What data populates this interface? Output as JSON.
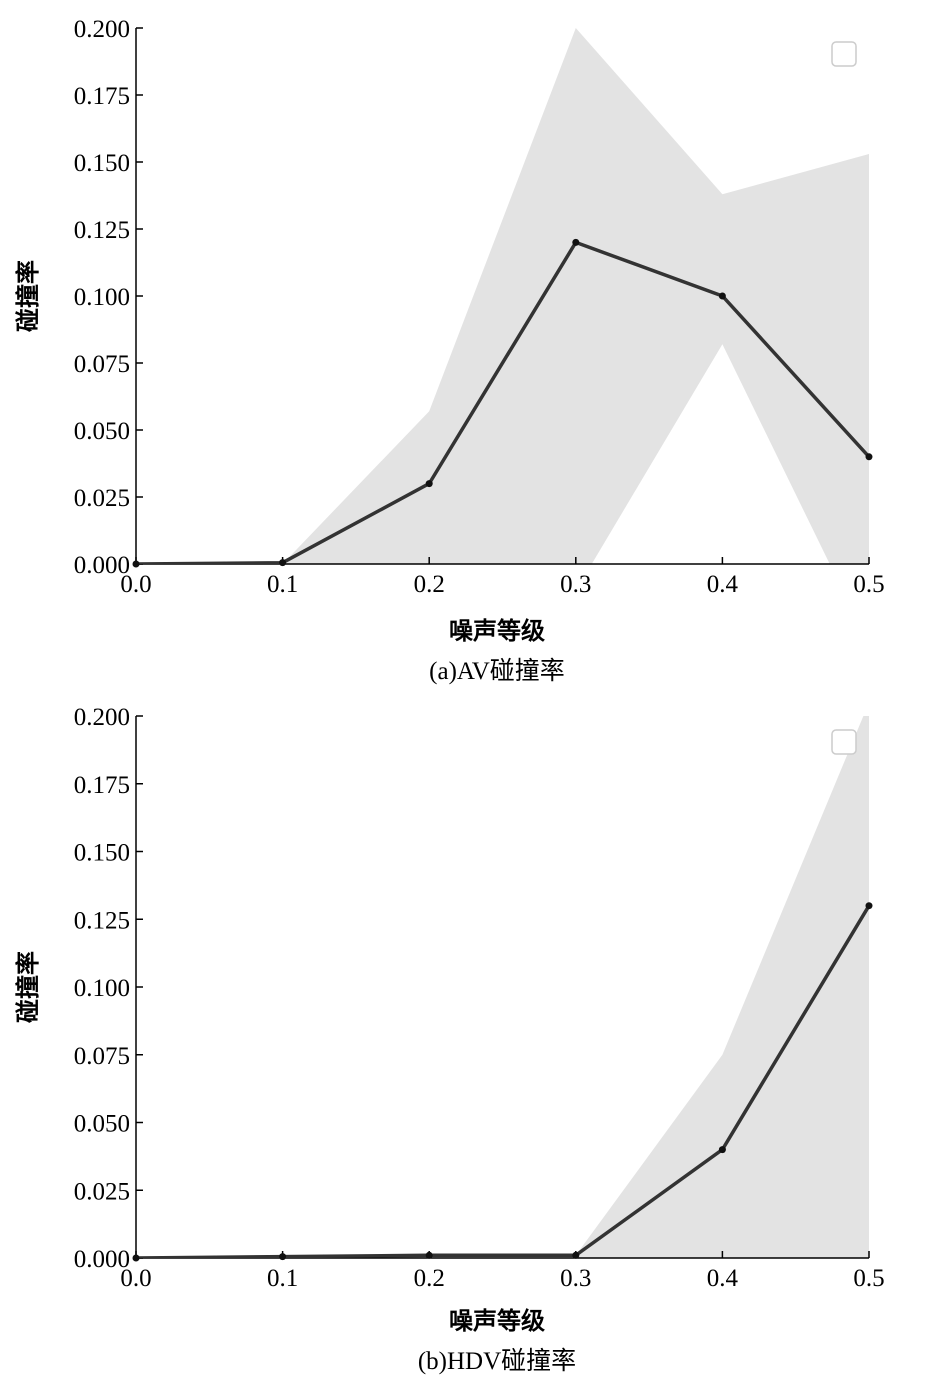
{
  "chart_data": [
    {
      "type": "line",
      "caption": "(a)AV碰撞率",
      "xlabel": "噪声等级",
      "ylabel": "碰撞率",
      "x": [
        0.0,
        0.1,
        0.2,
        0.3,
        0.4,
        0.5
      ],
      "xlim": [
        0.0,
        0.5
      ],
      "ylim": [
        0.0,
        0.2
      ],
      "xticks": [
        "0.0",
        "0.1",
        "0.2",
        "0.3",
        "0.4",
        "0.5"
      ],
      "yticks": [
        "0.000",
        "0.025",
        "0.050",
        "0.075",
        "0.100",
        "0.125",
        "0.150",
        "0.175",
        "0.200"
      ],
      "series": [
        {
          "values": [
            0.0,
            0.0005,
            0.03,
            0.12,
            0.1,
            0.04
          ],
          "band_upper": [
            0.0,
            0.0,
            0.057,
            0.2,
            0.138,
            0.153
          ],
          "band_lower": [
            0.0,
            0.0,
            0.0,
            -0.01,
            0.082,
            -0.03
          ]
        }
      ],
      "line_color": "#333333",
      "band_color": "#e3e3e3",
      "legend": "top-right (empty)",
      "grid": false
    },
    {
      "type": "line",
      "caption": "(b)HDV碰撞率",
      "xlabel": "噪声等级",
      "ylabel": "碰撞率",
      "x": [
        0.0,
        0.1,
        0.2,
        0.3,
        0.4,
        0.5
      ],
      "xlim": [
        0.0,
        0.5
      ],
      "ylim": [
        0.0,
        0.2
      ],
      "xticks": [
        "0.0",
        "0.1",
        "0.2",
        "0.3",
        "0.4",
        "0.5"
      ],
      "yticks": [
        "0.000",
        "0.025",
        "0.050",
        "0.075",
        "0.100",
        "0.125",
        "0.150",
        "0.175",
        "0.200"
      ],
      "series": [
        {
          "values": [
            0.0,
            0.0005,
            0.001,
            0.001,
            0.04,
            0.13
          ],
          "band_upper": [
            0.0,
            0.0,
            0.001,
            0.001,
            0.075,
            0.205
          ],
          "band_lower": [
            0.0,
            0.0,
            0.0,
            0.0,
            0.0,
            0.0
          ]
        }
      ],
      "line_color": "#333333",
      "band_color": "#e3e3e3",
      "legend": "top-right (empty)",
      "grid": false
    }
  ]
}
